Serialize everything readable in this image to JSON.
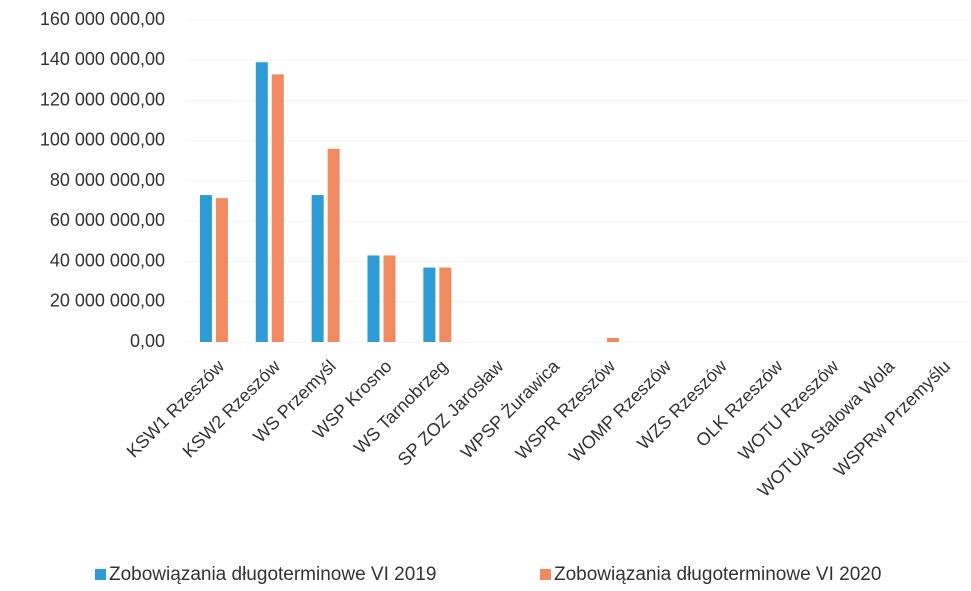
{
  "chart_data": {
    "type": "bar",
    "categories": [
      "KSW1 Rzeszów",
      "KSW2 Rzeszów",
      "WS Przemyśl",
      "WSP Krosno",
      "WS Tarnobrzeg",
      "SP ZOZ Jarosław",
      "WPSP Żurawica",
      "WSPR Rzeszów",
      "WOMP Rzeszów",
      "WZS Rzeszów",
      "OLK Rzeszów",
      "WOTU Rzeszów",
      "WOTUiA Stalowa Wola",
      "WSPRw Przemyślu"
    ],
    "series": [
      {
        "name": "Zobowiązania długoterminowe VI 2019",
        "color": "#2e9bd6",
        "values": [
          73000000,
          139000000,
          73000000,
          43000000,
          37000000,
          0,
          0,
          0,
          0,
          0,
          0,
          0,
          0,
          0
        ]
      },
      {
        "name": "Zobowiązania długoterminowe VI 2020",
        "color": "#f08a60",
        "values": [
          71500000,
          133000000,
          96000000,
          43000000,
          37000000,
          0,
          0,
          2000000,
          0,
          0,
          0,
          0,
          0,
          0
        ]
      }
    ],
    "ylim": [
      0,
      160000000
    ],
    "yticks": [
      {
        "value": 0,
        "label": "0,00"
      },
      {
        "value": 20000000,
        "label": "20 000 000,00"
      },
      {
        "value": 40000000,
        "label": "40 000 000,00"
      },
      {
        "value": 60000000,
        "label": "60 000 000,00"
      },
      {
        "value": 80000000,
        "label": "80 000 000,00"
      },
      {
        "value": 100000000,
        "label": "100 000 000,00"
      },
      {
        "value": 120000000,
        "label": "120 000 000,00"
      },
      {
        "value": 140000000,
        "label": "140 000 000,00"
      },
      {
        "value": 160000000,
        "label": "160 000 000,00"
      }
    ],
    "grid": true,
    "legend": "bottom"
  }
}
